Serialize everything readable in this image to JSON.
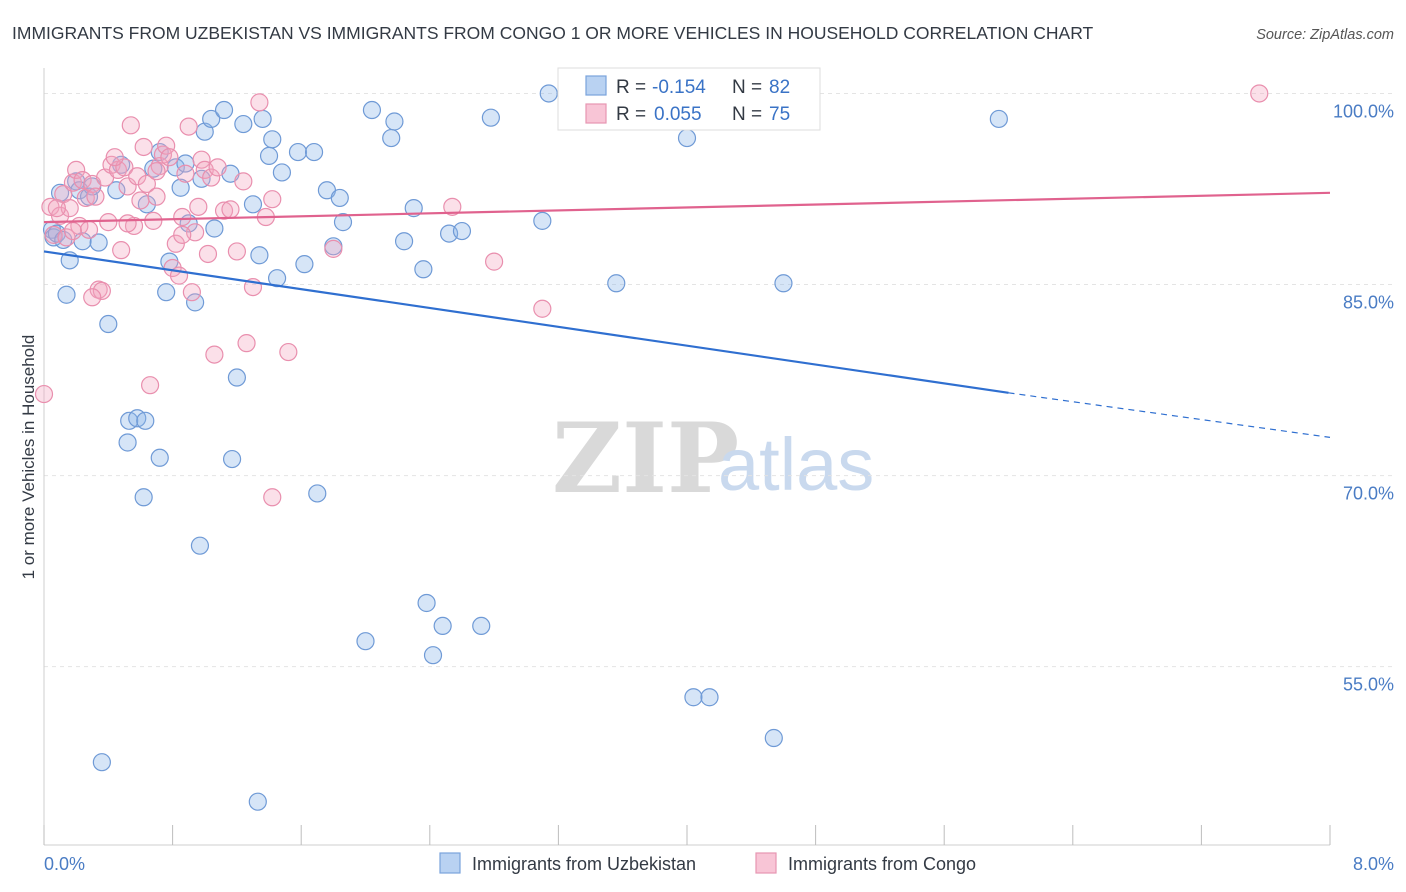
{
  "chart_data": {
    "type": "scatter",
    "title": "IMMIGRANTS FROM UZBEKISTAN VS IMMIGRANTS FROM CONGO 1 OR MORE VEHICLES IN HOUSEHOLD CORRELATION CHART",
    "source": "Source: ZipAtlas.com",
    "xlabel": "",
    "ylabel": "1 or more Vehicles in Household",
    "xlim": [
      0.0,
      8.0
    ],
    "ylim": [
      41.0,
      102.0
    ],
    "x_tick_labels": [
      "0.0%",
      "8.0%"
    ],
    "y_ticks": [
      100.0,
      85.0,
      70.0,
      55.0
    ],
    "y_tick_labels": [
      "100.0%",
      "85.0%",
      "70.0%",
      "55.0%"
    ],
    "watermark": {
      "zip": "ZIP",
      "atlas": "atlas"
    },
    "legend_stats": [
      {
        "r_label": "R =",
        "r_value": "-0.154",
        "n_label": "N =",
        "n_value": "82"
      },
      {
        "r_label": "R =",
        "r_value": "0.055",
        "n_label": "N =",
        "n_value": "75"
      }
    ],
    "series": [
      {
        "name": "Immigrants from Uzbekistan",
        "color": "#8ab4e8",
        "stroke": "#6f9ad6",
        "line_color": "#2f6fd0",
        "trend": {
          "x1": 0.0,
          "y1": 87.6,
          "x2": 6.0,
          "y2": 76.5,
          "dash_to_x": 8.0,
          "dash_to_y": 73.0
        },
        "points": [
          [
            0.05,
            89.3
          ],
          [
            0.06,
            88.7
          ],
          [
            0.08,
            89.0
          ],
          [
            0.1,
            92.2
          ],
          [
            0.12,
            88.5
          ],
          [
            0.14,
            84.2
          ],
          [
            0.16,
            86.9
          ],
          [
            0.2,
            93.1
          ],
          [
            0.22,
            92.4
          ],
          [
            0.24,
            88.4
          ],
          [
            0.28,
            91.9
          ],
          [
            0.3,
            92.7
          ],
          [
            0.34,
            88.3
          ],
          [
            0.4,
            81.9
          ],
          [
            0.45,
            92.4
          ],
          [
            0.48,
            94.4
          ],
          [
            0.52,
            72.6
          ],
          [
            0.53,
            74.3
          ],
          [
            0.58,
            74.5
          ],
          [
            0.62,
            68.3
          ],
          [
            0.63,
            74.3
          ],
          [
            0.64,
            91.3
          ],
          [
            0.68,
            94.1
          ],
          [
            0.72,
            95.4
          ],
          [
            0.72,
            71.4
          ],
          [
            0.76,
            84.4
          ],
          [
            0.78,
            86.8
          ],
          [
            0.82,
            94.2
          ],
          [
            0.85,
            92.6
          ],
          [
            0.88,
            94.5
          ],
          [
            0.9,
            89.8
          ],
          [
            0.94,
            83.6
          ],
          [
            0.97,
            64.5
          ],
          [
            0.98,
            93.3
          ],
          [
            1.0,
            97.0
          ],
          [
            1.04,
            98.0
          ],
          [
            1.06,
            89.4
          ],
          [
            1.12,
            98.7
          ],
          [
            1.16,
            93.7
          ],
          [
            1.17,
            71.3
          ],
          [
            1.2,
            77.7
          ],
          [
            1.24,
            97.6
          ],
          [
            1.3,
            91.3
          ],
          [
            1.34,
            87.3
          ],
          [
            1.36,
            98.0
          ],
          [
            1.4,
            95.1
          ],
          [
            1.42,
            96.4
          ],
          [
            1.45,
            85.5
          ],
          [
            1.48,
            93.8
          ],
          [
            1.58,
            95.4
          ],
          [
            1.68,
            95.4
          ],
          [
            1.62,
            86.6
          ],
          [
            1.7,
            68.6
          ],
          [
            1.76,
            92.4
          ],
          [
            1.8,
            88.0
          ],
          [
            1.84,
            91.8
          ],
          [
            1.86,
            89.9
          ],
          [
            2.0,
            57.0
          ],
          [
            2.04,
            98.7
          ],
          [
            2.16,
            96.5
          ],
          [
            2.18,
            97.8
          ],
          [
            2.24,
            88.4
          ],
          [
            2.3,
            91.0
          ],
          [
            2.36,
            86.2
          ],
          [
            2.38,
            60.0
          ],
          [
            2.42,
            55.9
          ],
          [
            2.48,
            58.2
          ],
          [
            2.52,
            89.0
          ],
          [
            2.6,
            89.2
          ],
          [
            2.72,
            58.2
          ],
          [
            2.78,
            98.1
          ],
          [
            3.1,
            90.0
          ],
          [
            3.14,
            100.0
          ],
          [
            3.28,
            100.0
          ],
          [
            3.56,
            85.1
          ],
          [
            4.0,
            96.5
          ],
          [
            4.04,
            52.6
          ],
          [
            4.14,
            52.6
          ],
          [
            4.54,
            49.4
          ],
          [
            4.6,
            85.1
          ],
          [
            5.94,
            98.0
          ],
          [
            0.36,
            47.5
          ],
          [
            1.33,
            44.4
          ]
        ]
      },
      {
        "name": "Immigrants from Congo",
        "color": "#f4a6c0",
        "stroke": "#e98fae",
        "line_color": "#e0628e",
        "trend": {
          "x1": 0.0,
          "y1": 89.9,
          "x2": 8.0,
          "y2": 92.2
        },
        "points": [
          [
            0.0,
            76.4
          ],
          [
            0.04,
            91.1
          ],
          [
            0.06,
            88.9
          ],
          [
            0.1,
            90.4
          ],
          [
            0.12,
            92.1
          ],
          [
            0.14,
            88.7
          ],
          [
            0.16,
            91.0
          ],
          [
            0.18,
            93.0
          ],
          [
            0.2,
            94.0
          ],
          [
            0.22,
            89.6
          ],
          [
            0.24,
            93.2
          ],
          [
            0.26,
            91.8
          ],
          [
            0.28,
            89.3
          ],
          [
            0.3,
            92.9
          ],
          [
            0.32,
            91.9
          ],
          [
            0.34,
            84.6
          ],
          [
            0.36,
            84.5
          ],
          [
            0.38,
            93.4
          ],
          [
            0.4,
            89.9
          ],
          [
            0.42,
            94.4
          ],
          [
            0.46,
            94.0
          ],
          [
            0.48,
            87.7
          ],
          [
            0.5,
            94.2
          ],
          [
            0.52,
            92.7
          ],
          [
            0.54,
            97.5
          ],
          [
            0.56,
            89.6
          ],
          [
            0.58,
            93.5
          ],
          [
            0.6,
            91.6
          ],
          [
            0.62,
            95.8
          ],
          [
            0.64,
            92.9
          ],
          [
            0.66,
            77.1
          ],
          [
            0.68,
            90.0
          ],
          [
            0.7,
            91.9
          ],
          [
            0.72,
            94.3
          ],
          [
            0.74,
            95.2
          ],
          [
            0.76,
            95.9
          ],
          [
            0.78,
            95.0
          ],
          [
            0.8,
            86.3
          ],
          [
            0.82,
            88.2
          ],
          [
            0.84,
            85.7
          ],
          [
            0.86,
            90.3
          ],
          [
            0.88,
            93.7
          ],
          [
            0.9,
            97.4
          ],
          [
            0.92,
            84.4
          ],
          [
            0.94,
            89.1
          ],
          [
            0.96,
            91.1
          ],
          [
            0.98,
            94.8
          ],
          [
            1.0,
            94.0
          ],
          [
            1.02,
            87.4
          ],
          [
            1.04,
            93.4
          ],
          [
            1.06,
            79.5
          ],
          [
            1.08,
            94.2
          ],
          [
            1.12,
            90.8
          ],
          [
            1.16,
            90.9
          ],
          [
            1.2,
            87.6
          ],
          [
            1.24,
            93.1
          ],
          [
            1.26,
            80.4
          ],
          [
            1.3,
            84.8
          ],
          [
            1.34,
            99.3
          ],
          [
            1.38,
            90.3
          ],
          [
            1.42,
            91.7
          ],
          [
            1.42,
            68.3
          ],
          [
            1.52,
            79.7
          ],
          [
            1.8,
            87.8
          ],
          [
            2.54,
            91.1
          ],
          [
            2.8,
            86.8
          ],
          [
            3.1,
            83.1
          ],
          [
            7.56,
            100.0
          ],
          [
            0.08,
            91.0
          ],
          [
            0.44,
            95.0
          ],
          [
            0.7,
            93.9
          ],
          [
            0.86,
            88.9
          ],
          [
            0.3,
            84.0
          ],
          [
            0.18,
            89.2
          ],
          [
            0.52,
            89.8
          ]
        ]
      }
    ]
  }
}
